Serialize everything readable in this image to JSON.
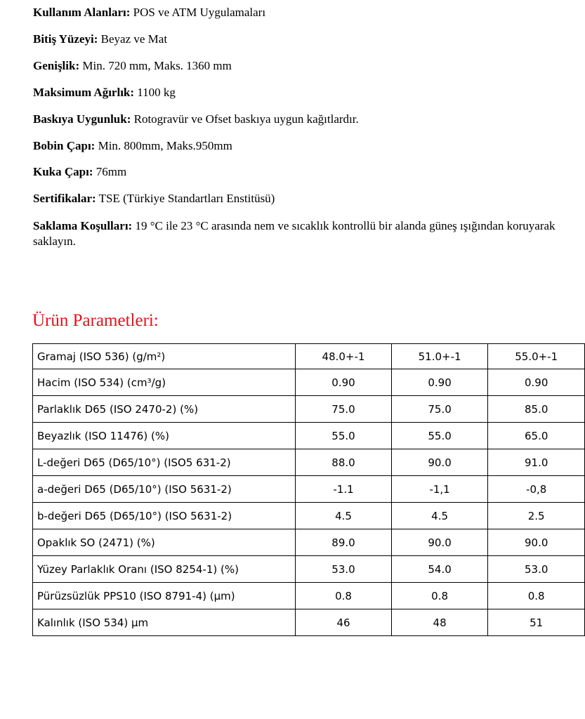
{
  "specs": [
    {
      "label": "Kullanım Alanları:",
      "value": " POS ve ATM Uygulamaları"
    },
    {
      "label": "Bitiş Yüzeyi:",
      "value": " Beyaz ve  Mat"
    },
    {
      "label": "Genişlik:",
      "value": " Min. 720 mm, Maks. 1360 mm"
    },
    {
      "label": "Maksimum Ağırlık:",
      "value": " 1100 kg"
    },
    {
      "label": "Baskıya Uygunluk:",
      "value": " Rotogravür ve Ofset baskıya uygun kağıtlardır."
    },
    {
      "label": "Bobin Çapı:",
      "value": " Min. 800mm, Maks.950mm"
    },
    {
      "label": "Kuka Çapı:",
      "value": " 76mm"
    },
    {
      "label": "Sertifikalar:",
      "value": " TSE (Türkiye Standartları Enstitüsü)"
    },
    {
      "label": "Saklama Koşulları:",
      "value": " 19 °C ile 23 °C arasında nem ve sıcaklık kontrollü bir alanda güneş ışığından koruyarak saklayın."
    }
  ],
  "section_title": "Ürün Parametleri:",
  "table": [
    [
      "Gramaj (ISO 536) (g/m²)",
      "48.0+-1",
      "51.0+-1",
      "55.0+-1"
    ],
    [
      "Hacim (ISO 534) (cm³/g)",
      "0.90",
      "0.90",
      "0.90"
    ],
    [
      "Parlaklık D65 (ISO 2470-2) (%)",
      "75.0",
      "75.0",
      "85.0"
    ],
    [
      "Beyazlık (ISO 11476) (%)",
      "55.0",
      "55.0",
      "65.0"
    ],
    [
      "L-değeri D65 (D65/10°) (ISO5 631-2)",
      "88.0",
      "90.0",
      "91.0"
    ],
    [
      "a-değeri D65 (D65/10°) (ISO 5631-2)",
      "-1.1",
      "-1,1",
      "-0,8"
    ],
    [
      "b-değeri D65 (D65/10°) (ISO 5631-2)",
      "4.5",
      "4.5",
      "2.5"
    ],
    [
      "Opaklık SO (2471) (%)",
      "89.0",
      "90.0",
      "90.0"
    ],
    [
      "Yüzey Parlaklık Oranı (ISO 8254-1) (%)",
      "53.0",
      "54.0",
      "53.0"
    ],
    [
      "Pürüzsüzlük PPS10 (ISO 8791-4) (µm)",
      "0.8",
      "0.8",
      "0.8"
    ],
    [
      "Kalınlık (ISO 534) µm",
      "46",
      "48",
      "51"
    ]
  ],
  "colors": {
    "title": "#e8121a"
  }
}
